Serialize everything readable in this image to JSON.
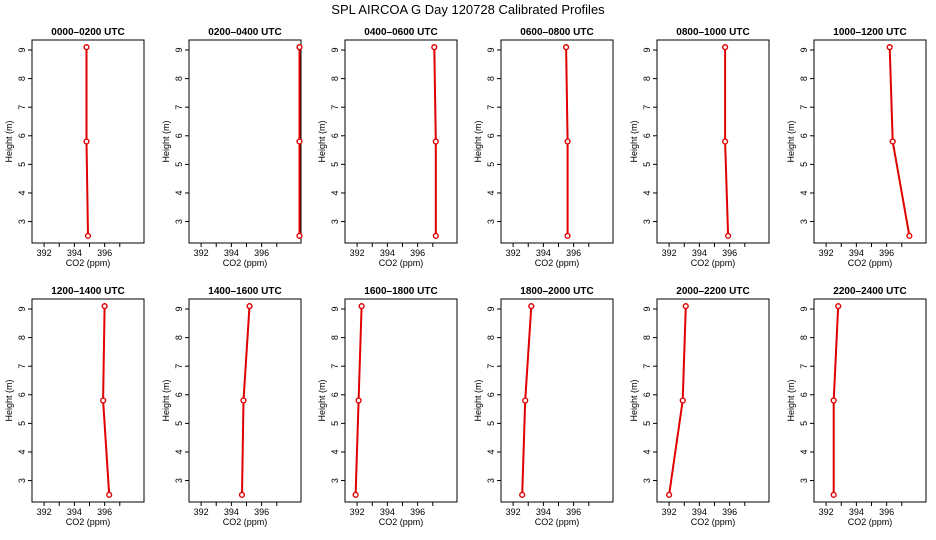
{
  "figure": {
    "title": "SPL AIRCOA G  Day 120728  Calibrated Profiles"
  },
  "chart_data": {
    "type": "line",
    "xlabel": "CO2 (ppm)",
    "ylabel": "Height (m)",
    "xlim": [
      391.2,
      398.6
    ],
    "ylim": [
      2.25,
      9.35
    ],
    "x_ticks": [
      392,
      394,
      396
    ],
    "y_ticks": [
      3,
      4,
      5,
      6,
      7,
      8,
      9
    ],
    "line_color": "#e00000",
    "marker": "open-circle",
    "heights": [
      9.1,
      5.8,
      2.5
    ],
    "panels": [
      {
        "title": "0000–0200 UTC",
        "co2": [
          394.8,
          394.8,
          394.9
        ]
      },
      {
        "title": "0200–0400 UTC",
        "co2": [
          398.5,
          398.5,
          398.5
        ]
      },
      {
        "title": "0400–0600 UTC",
        "co2": [
          397.1,
          397.2,
          397.2
        ]
      },
      {
        "title": "0600–0800 UTC",
        "co2": [
          395.5,
          395.6,
          395.6
        ]
      },
      {
        "title": "0800–1000 UTC",
        "co2": [
          395.7,
          395.7,
          395.9
        ]
      },
      {
        "title": "1000–1200 UTC",
        "co2": [
          396.2,
          396.4,
          397.5
        ]
      },
      {
        "title": "1200–1400 UTC",
        "co2": [
          396.0,
          395.9,
          396.3
        ]
      },
      {
        "title": "1400–1600 UTC",
        "co2": [
          395.2,
          394.8,
          394.7
        ]
      },
      {
        "title": "1600–1800 UTC",
        "co2": [
          392.3,
          392.1,
          391.9
        ]
      },
      {
        "title": "1800–2000 UTC",
        "co2": [
          393.2,
          392.8,
          392.6
        ]
      },
      {
        "title": "2000–2200 UTC",
        "co2": [
          393.1,
          392.9,
          392.0
        ]
      },
      {
        "title": "2200–2400 UTC",
        "co2": [
          392.8,
          392.5,
          392.5
        ]
      }
    ]
  }
}
